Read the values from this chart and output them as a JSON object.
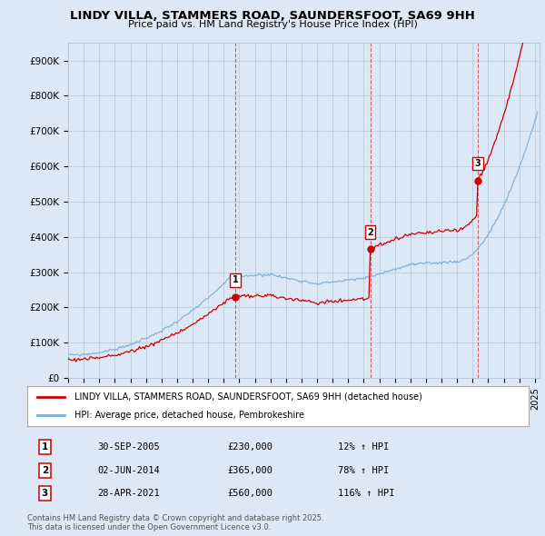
{
  "title": "LINDY VILLA, STAMMERS ROAD, SAUNDERSFOOT, SA69 9HH",
  "subtitle": "Price paid vs. HM Land Registry's House Price Index (HPI)",
  "legend_label_red": "LINDY VILLA, STAMMERS ROAD, SAUNDERSFOOT, SA69 9HH (detached house)",
  "legend_label_blue": "HPI: Average price, detached house, Pembrokeshire",
  "sale_prices": [
    230000,
    365000,
    560000
  ],
  "sale_years_num": [
    2005.75,
    2014.417,
    2021.333
  ],
  "sale_labels": [
    "1",
    "2",
    "3"
  ],
  "sale_info": [
    [
      "1",
      "30-SEP-2005",
      "£230,000",
      "12% ↑ HPI"
    ],
    [
      "2",
      "02-JUN-2014",
      "£365,000",
      "78% ↑ HPI"
    ],
    [
      "3",
      "28-APR-2021",
      "£560,000",
      "116% ↑ HPI"
    ]
  ],
  "footer": "Contains HM Land Registry data © Crown copyright and database right 2025.\nThis data is licensed under the Open Government Licence v3.0.",
  "ylim": [
    0,
    950000
  ],
  "yticks": [
    0,
    100000,
    200000,
    300000,
    400000,
    500000,
    600000,
    700000,
    800000,
    900000
  ],
  "ytick_labels": [
    "£0",
    "£100K",
    "£200K",
    "£300K",
    "£400K",
    "£500K",
    "£600K",
    "£700K",
    "£800K",
    "£900K"
  ],
  "red_color": "#cc0000",
  "blue_color": "#7aadd4",
  "vline_color": "#cc0000",
  "background_color": "#dce8f5",
  "plot_bg_color": "#dce8f5",
  "grid_color": "#b8c8d8"
}
